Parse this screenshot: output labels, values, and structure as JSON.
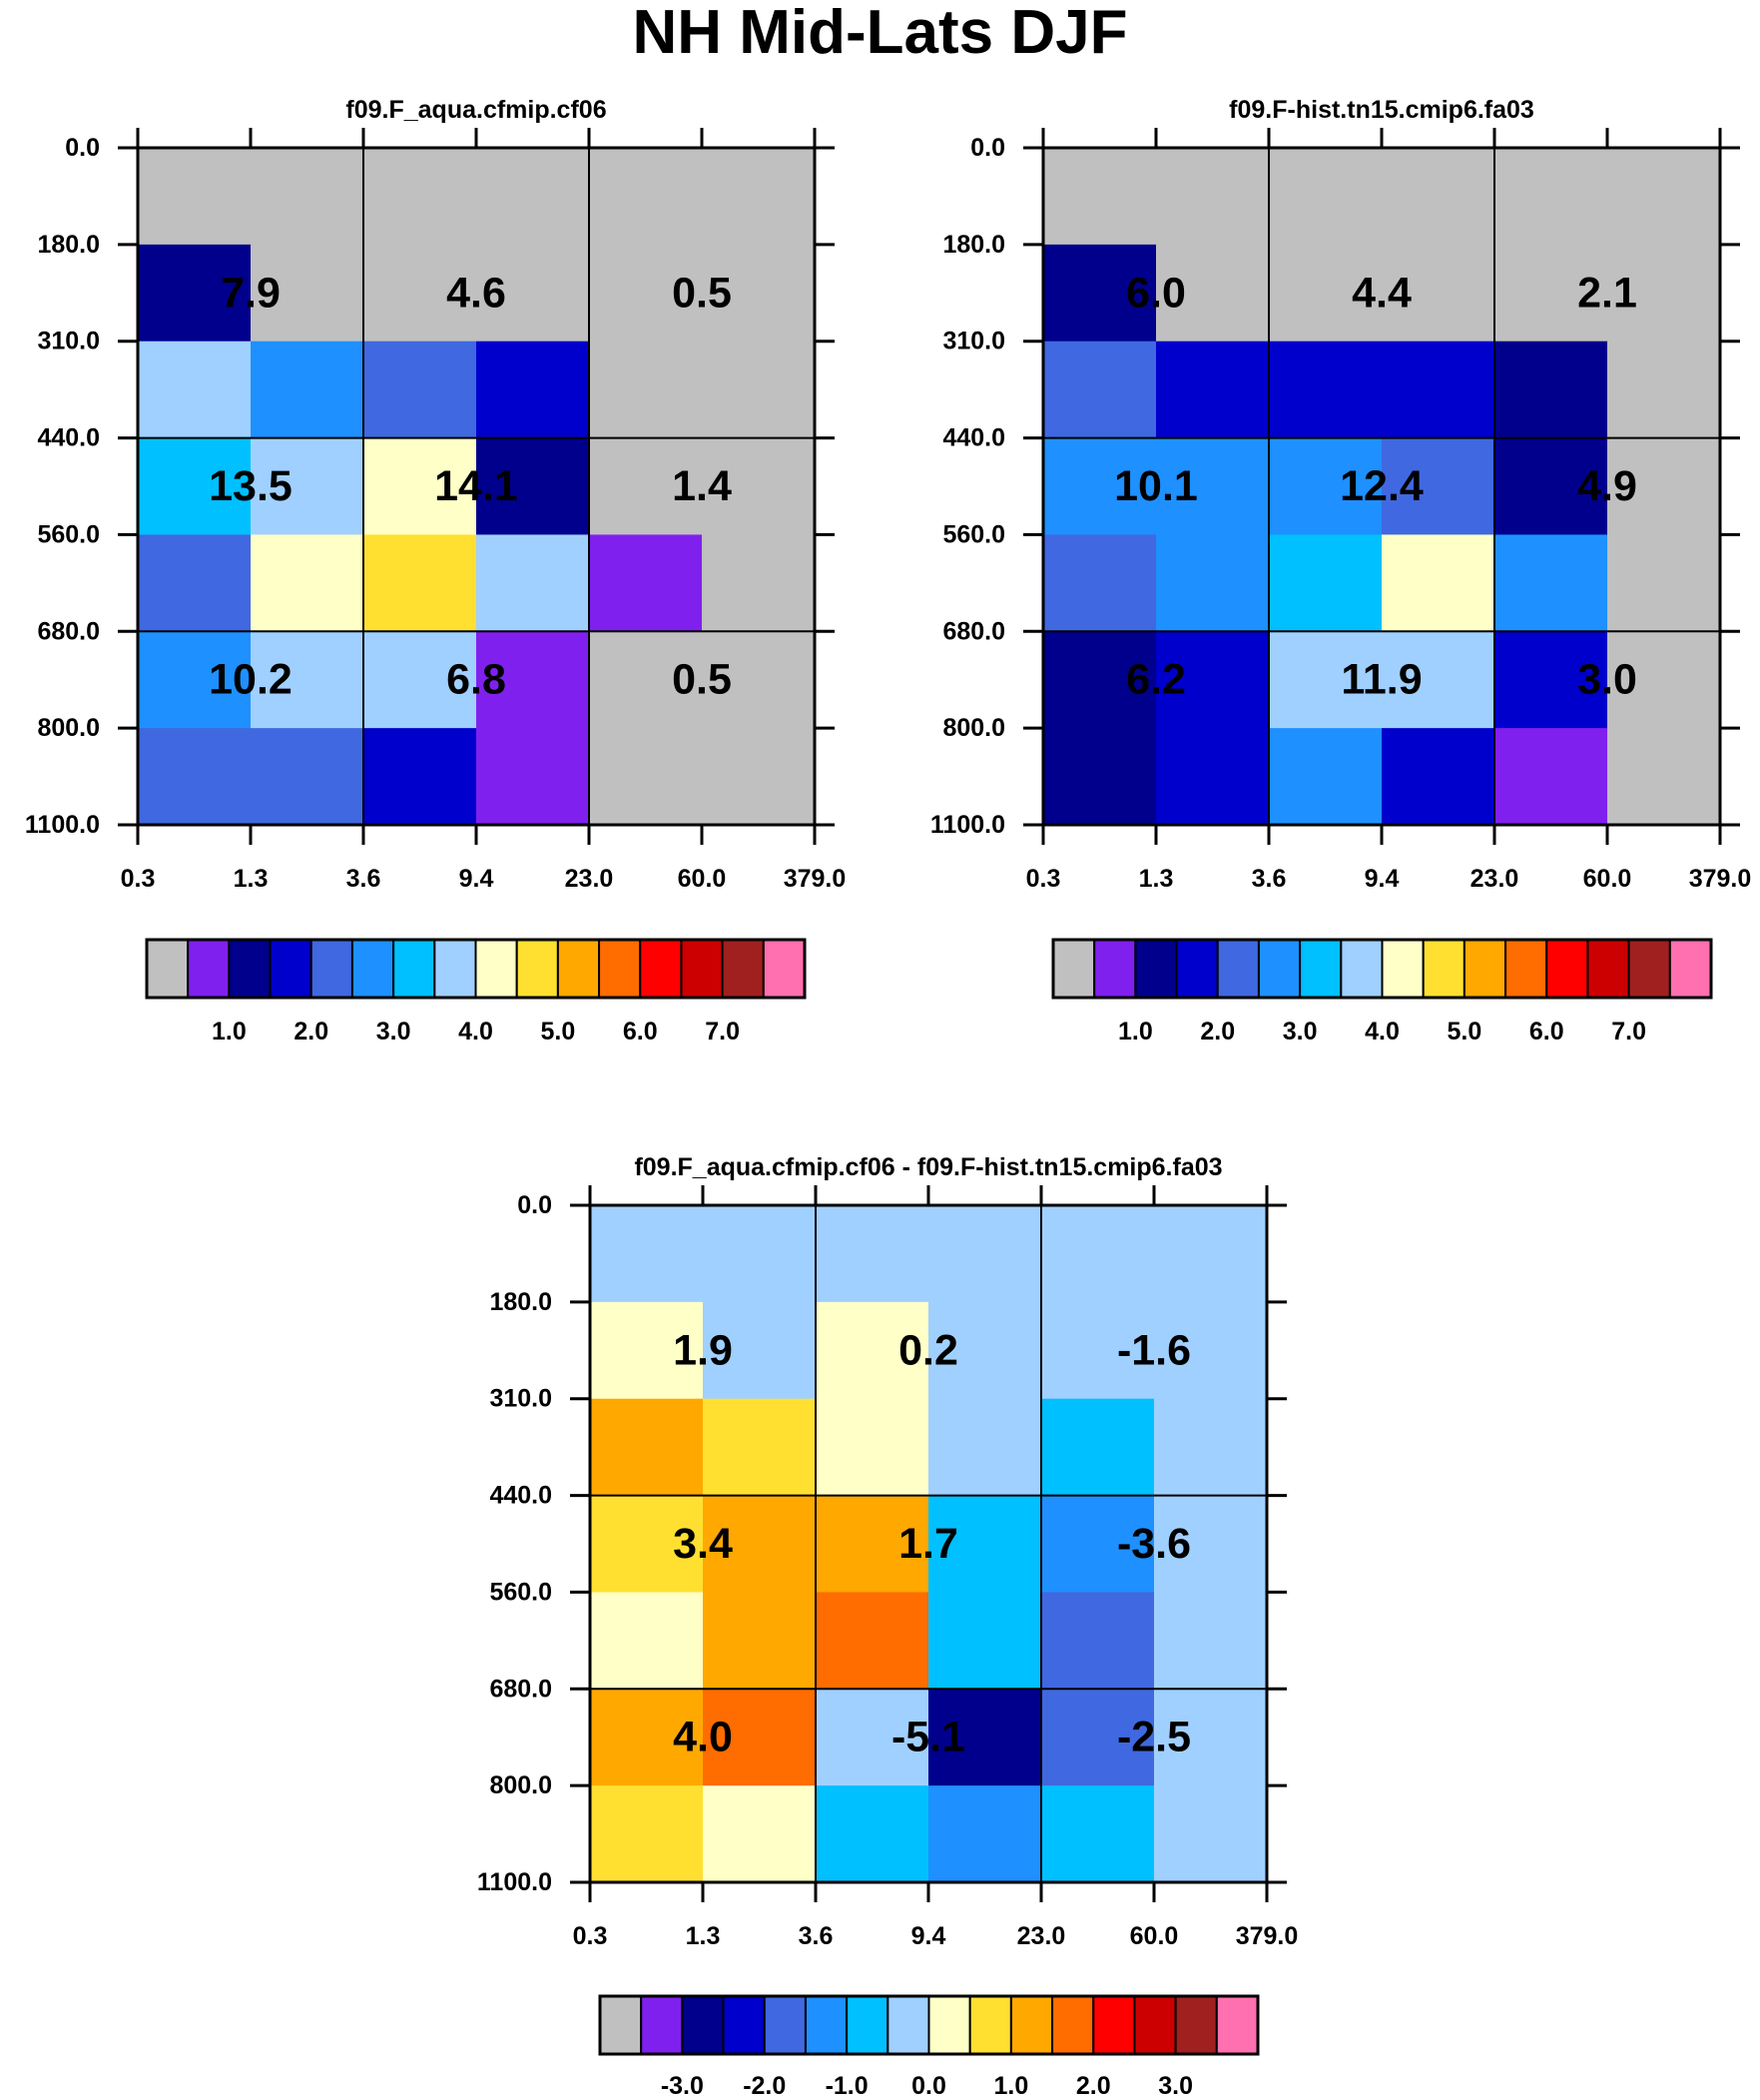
{
  "title": "NH Mid-Lats DJF",
  "chart_data": [
    {
      "type": "heatmap",
      "panel": "top-left",
      "title": "f09.F_aqua.cfmip.cf06",
      "y_ticks": [
        "0.0",
        "180.0",
        "310.0",
        "440.0",
        "560.0",
        "680.0",
        "800.0",
        "1100.0"
      ],
      "x_ticks": [
        "0.3",
        "1.3",
        "3.6",
        "9.4",
        "23.0",
        "60.0",
        "379.0"
      ],
      "grid_colors": [
        [
          0,
          0,
          0,
          0,
          0,
          0
        ],
        [
          2,
          0,
          0,
          0,
          0,
          0
        ],
        [
          7,
          5,
          4,
          3,
          0,
          0
        ],
        [
          6,
          7,
          8,
          2,
          0,
          0
        ],
        [
          4,
          8,
          9,
          7,
          1,
          0
        ],
        [
          5,
          7,
          7,
          1,
          0,
          0
        ],
        [
          4,
          4,
          3,
          1,
          0,
          0
        ]
      ],
      "box_values": [
        [
          "7.9",
          "4.6",
          "0.5"
        ],
        [
          "13.5",
          "14.1",
          "1.4"
        ],
        [
          "10.2",
          "6.8",
          "0.5"
        ]
      ],
      "colorbar_labels": [
        "1.0",
        "2.0",
        "3.0",
        "4.0",
        "5.0",
        "6.0",
        "7.0"
      ]
    },
    {
      "type": "heatmap",
      "panel": "top-right",
      "title": "f09.F-hist.tn15.cmip6.fa03",
      "y_ticks": [
        "0.0",
        "180.0",
        "310.0",
        "440.0",
        "560.0",
        "680.0",
        "800.0",
        "1100.0"
      ],
      "x_ticks": [
        "0.3",
        "1.3",
        "3.6",
        "9.4",
        "23.0",
        "60.0",
        "379.0"
      ],
      "grid_colors": [
        [
          0,
          0,
          0,
          0,
          0,
          0
        ],
        [
          2,
          0,
          0,
          0,
          0,
          0
        ],
        [
          4,
          3,
          3,
          3,
          2,
          0
        ],
        [
          5,
          5,
          5,
          4,
          2,
          0
        ],
        [
          4,
          5,
          6,
          8,
          5,
          0
        ],
        [
          2,
          3,
          7,
          7,
          3,
          0
        ],
        [
          2,
          3,
          5,
          3,
          1,
          0
        ]
      ],
      "box_values": [
        [
          "6.0",
          "4.4",
          "2.1"
        ],
        [
          "10.1",
          "12.4",
          "4.9"
        ],
        [
          "6.2",
          "11.9",
          "3.0"
        ]
      ],
      "colorbar_labels": [
        "1.0",
        "2.0",
        "3.0",
        "4.0",
        "5.0",
        "6.0",
        "7.0"
      ]
    },
    {
      "type": "heatmap",
      "panel": "bottom",
      "title": "f09.F_aqua.cfmip.cf06 - f09.F-hist.tn15.cmip6.fa03",
      "y_ticks": [
        "0.0",
        "180.0",
        "310.0",
        "440.0",
        "560.0",
        "680.0",
        "800.0",
        "1100.0"
      ],
      "x_ticks": [
        "0.3",
        "1.3",
        "3.6",
        "9.4",
        "23.0",
        "60.0",
        "379.0"
      ],
      "grid_colors": [
        [
          7,
          7,
          7,
          7,
          7,
          7
        ],
        [
          8,
          7,
          8,
          7,
          7,
          7
        ],
        [
          10,
          9,
          8,
          7,
          6,
          7
        ],
        [
          9,
          10,
          10,
          6,
          5,
          7
        ],
        [
          8,
          10,
          11,
          6,
          4,
          7
        ],
        [
          10,
          11,
          7,
          2,
          4,
          7
        ],
        [
          9,
          8,
          6,
          5,
          6,
          7
        ]
      ],
      "box_values": [
        [
          "1.9",
          "0.2",
          "-1.6"
        ],
        [
          "3.4",
          "1.7",
          "-3.6"
        ],
        [
          "4.0",
          "-5.1",
          "-2.5"
        ]
      ],
      "colorbar_labels": [
        "-3.0",
        "-2.0",
        "-1.0",
        "0.0",
        "1.0",
        "2.0",
        "3.0"
      ]
    }
  ],
  "palette": [
    "#c0c0c0",
    "#8020ee",
    "#00008c",
    "#0000cc",
    "#4068e0",
    "#1e90ff",
    "#00c0ff",
    "#a0d0ff",
    "#ffffc8",
    "#ffe030",
    "#ffa800",
    "#ff6c00",
    "#ff0000",
    "#cc0000",
    "#a02020",
    "#ff70b0"
  ]
}
